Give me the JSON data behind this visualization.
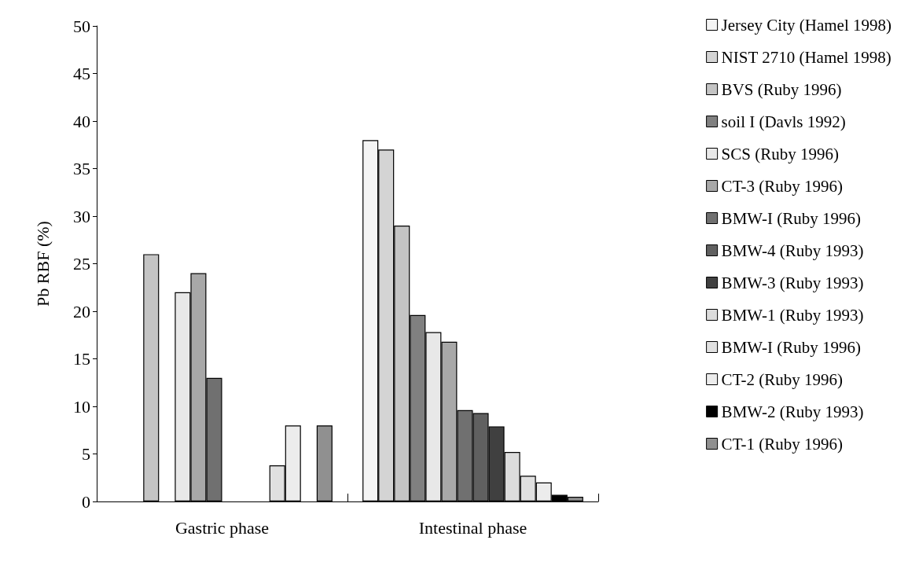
{
  "chart_data": {
    "type": "bar",
    "ylabel": "Pb RBF (%)",
    "categories": [
      "Gastric phase",
      "Intestinal phase"
    ],
    "ylim": [
      0,
      50
    ],
    "yticks": [
      0,
      5,
      10,
      15,
      20,
      25,
      30,
      35,
      40,
      45,
      50
    ],
    "grid": false,
    "legend": "right",
    "series": [
      {
        "name": "Jersey City (Hamel 1998)",
        "color": "#f4f4f4",
        "values": [
          null,
          38
        ]
      },
      {
        "name": "NIST 2710 (Hamel 1998)",
        "color": "#d4d4d4",
        "values": [
          null,
          37
        ]
      },
      {
        "name": "BVS (Ruby 1996)",
        "color": "#c4c4c4",
        "values": [
          26,
          29
        ]
      },
      {
        "name": "soil I (Davls 1992)",
        "color": "#808080",
        "values": [
          null,
          19.6
        ]
      },
      {
        "name": "SCS (Ruby 1996)",
        "color": "#e8e8e8",
        "values": [
          22,
          17.8
        ]
      },
      {
        "name": "CT-3 (Ruby 1996)",
        "color": "#a8a8a8",
        "values": [
          24,
          16.8
        ]
      },
      {
        "name": "BMW-I (Ruby 1996)",
        "color": "#707070",
        "values": [
          13,
          9.6
        ]
      },
      {
        "name": "BMW-4 (Ruby 1993)",
        "color": "#606060",
        "values": [
          null,
          9.3
        ]
      },
      {
        "name": "BMW-3 (Ruby 1993)",
        "color": "#404040",
        "values": [
          null,
          7.9
        ]
      },
      {
        "name": "BMW-1 (Ruby 1993)",
        "color": "#dcdcdc",
        "values": [
          null,
          5.2
        ]
      },
      {
        "name": "BMW-I (Ruby 1996)",
        "color": "#e0e0e0",
        "values": [
          3.8,
          2.7
        ]
      },
      {
        "name": "CT-2 (Ruby 1996)",
        "color": "#ececec",
        "values": [
          8,
          2.0
        ]
      },
      {
        "name": "BMW-2 (Ruby 1993)",
        "color": "#000000",
        "values": [
          null,
          0.7
        ]
      },
      {
        "name": "CT-1 (Ruby 1996)",
        "color": "#909090",
        "values": [
          8,
          0.5
        ]
      }
    ]
  }
}
